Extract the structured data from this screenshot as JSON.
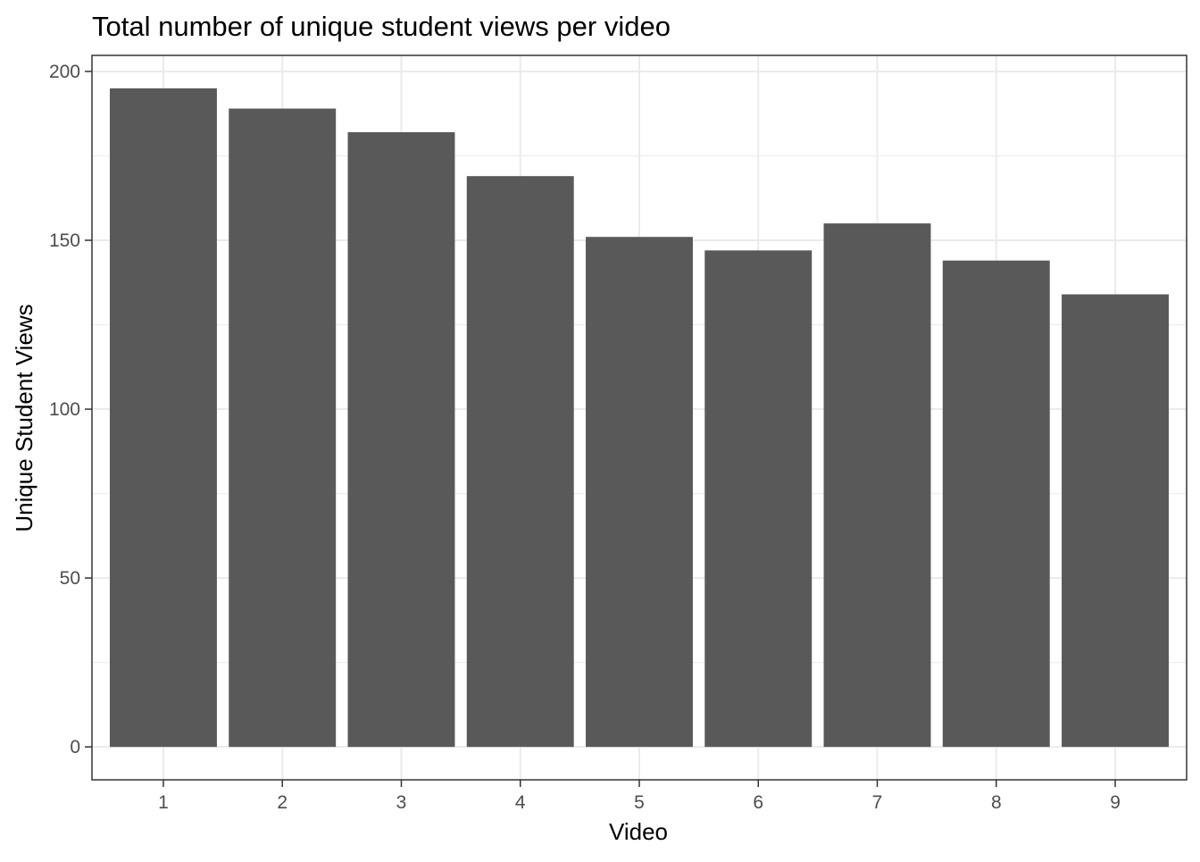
{
  "chart_data": {
    "type": "bar",
    "title": "Total number of unique student views per video",
    "xlabel": "Video",
    "ylabel": "Unique Student Views",
    "categories": [
      "1",
      "2",
      "3",
      "4",
      "5",
      "6",
      "7",
      "8",
      "9"
    ],
    "values": [
      195,
      189,
      182,
      169,
      151,
      147,
      155,
      144,
      134
    ],
    "ylim": [
      -9.75,
      204.75
    ],
    "yticks": [
      0,
      50,
      100,
      150,
      200
    ],
    "ytick_labels": [
      "0",
      "50",
      "100",
      "150",
      "200"
    ],
    "grid": true,
    "theme": "bw",
    "bar_color": "#595959",
    "grid_color": "#ebebeb",
    "panel_border_color": "#333333"
  }
}
